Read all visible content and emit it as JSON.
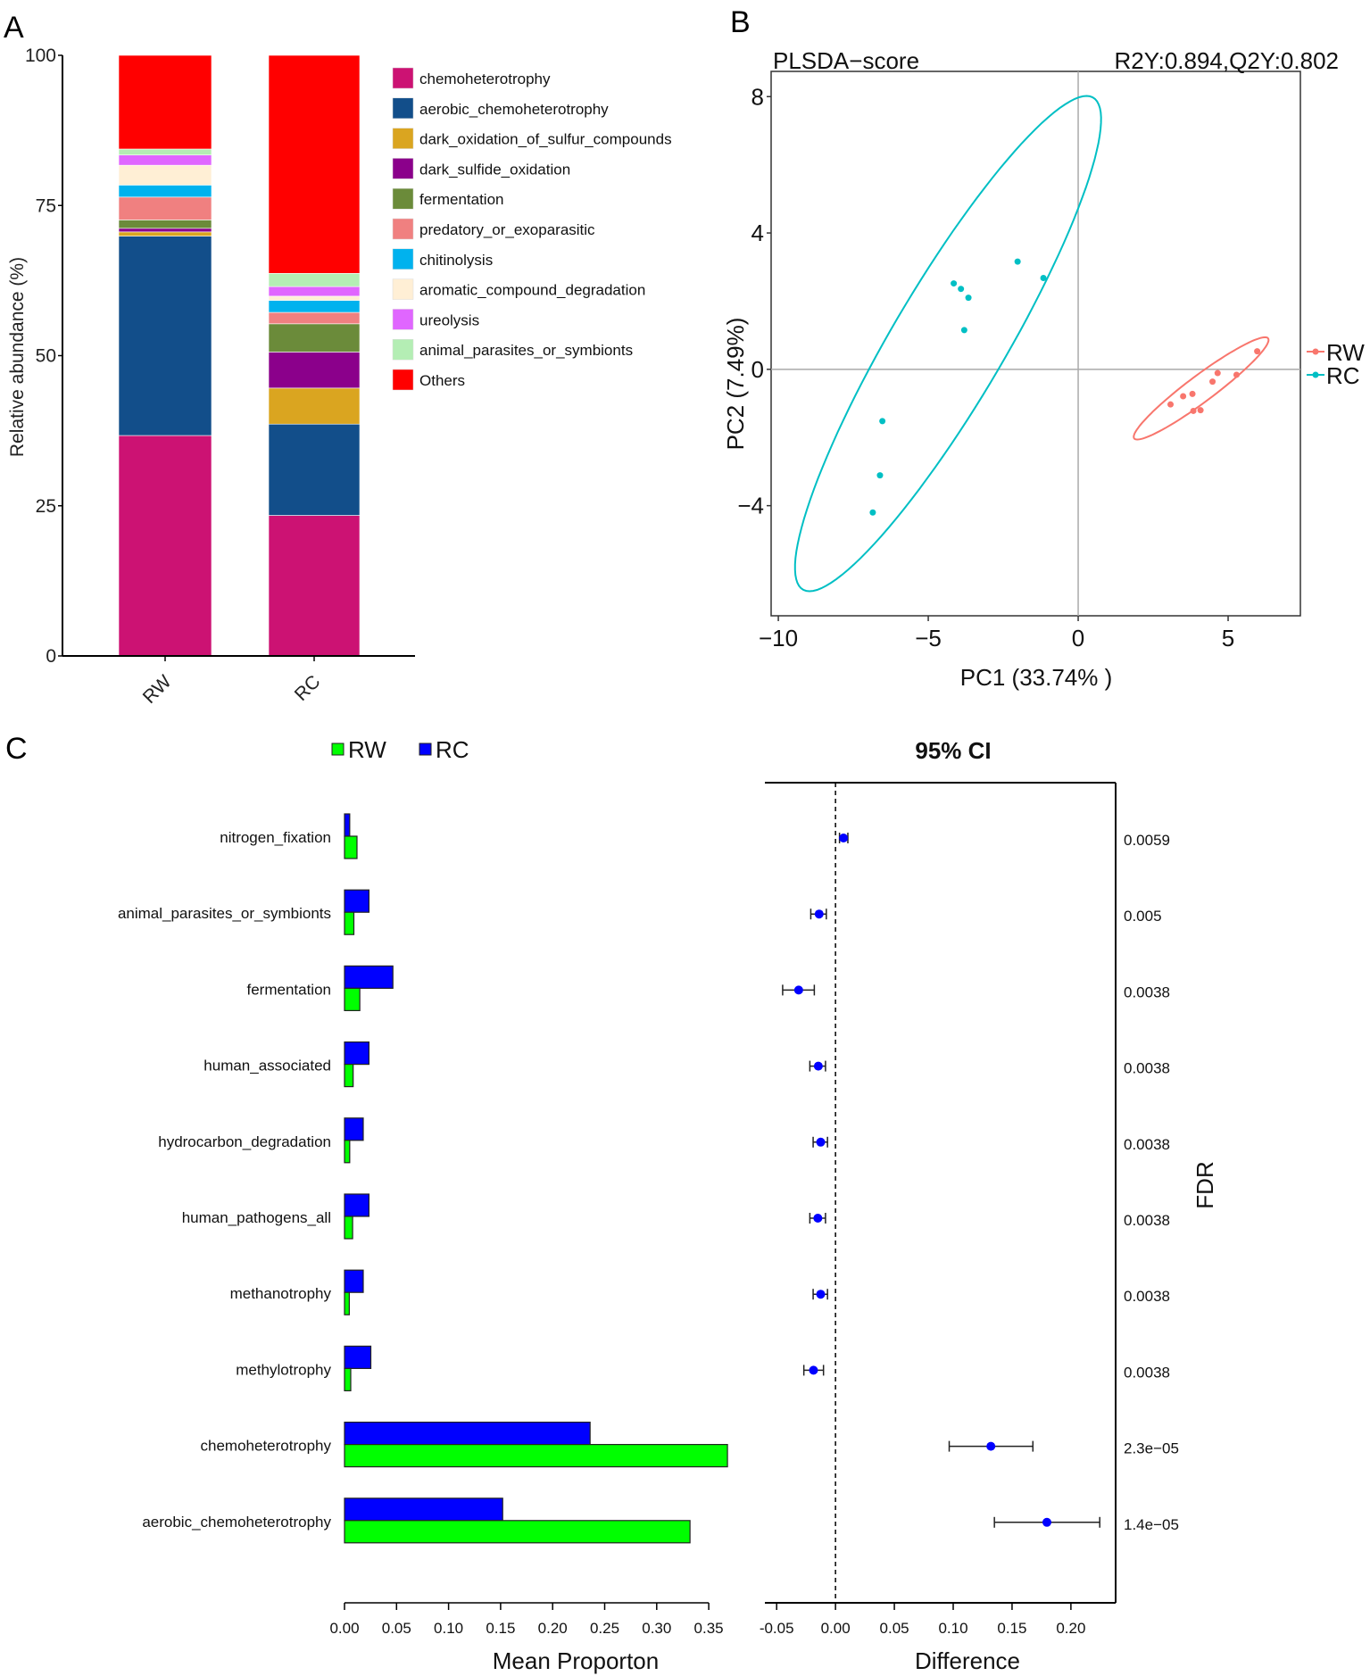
{
  "chart_data": [
    {
      "panel": "A",
      "type": "bar",
      "stacked": true,
      "ylabel": "Relative abundance (%)",
      "ylim": [
        0,
        100
      ],
      "yticks": [
        "0",
        "25",
        "50",
        "75",
        "100"
      ],
      "categories": [
        "RW",
        "RC"
      ],
      "series": [
        {
          "name": "chemoheterotrophy",
          "color": "#CC1273",
          "values": [
            36.7,
            23.4
          ]
        },
        {
          "name": "aerobic_chemoheterotrophy",
          "color": "#124E8A",
          "values": [
            33.2,
            15.2
          ]
        },
        {
          "name": "dark_oxidation_of_sulfur_compounds",
          "color": "#DAA520",
          "values": [
            0.7,
            6.0
          ]
        },
        {
          "name": "dark_sulfide_oxidation",
          "color": "#8B008B",
          "values": [
            0.6,
            6.0
          ]
        },
        {
          "name": "fermentation",
          "color": "#6B8B3A",
          "values": [
            1.4,
            4.7
          ]
        },
        {
          "name": "predatory_or_exoparasitic",
          "color": "#F08080",
          "values": [
            3.8,
            1.9
          ]
        },
        {
          "name": "chitinolysis",
          "color": "#00B2EE",
          "values": [
            2.0,
            2.0
          ]
        },
        {
          "name": "aromatic_compound_degradation",
          "color": "#FFEFD5",
          "values": [
            3.3,
            0.7
          ]
        },
        {
          "name": "ureolysis",
          "color": "#E066FF",
          "values": [
            1.7,
            1.6
          ]
        },
        {
          "name": "animal_parasites_or_symbionts",
          "color": "#B4EEB4",
          "values": [
            1.0,
            2.2
          ]
        },
        {
          "name": "Others",
          "color": "#FF0000",
          "values": [
            15.6,
            36.3
          ]
        }
      ],
      "legend": "right"
    },
    {
      "panel": "B",
      "type": "scatter",
      "title": "PLSDA−score",
      "subtitle": "R2Y:0.894,Q2Y:0.802",
      "xlabel": "PC1 (33.74% )",
      "ylabel": "PC2 (7.49%)",
      "xlim": [
        -10.24,
        7.41
      ],
      "ylim": [
        -7.23,
        8.74
      ],
      "xticks": [
        {
          "v": -10,
          "l": "−10"
        },
        {
          "v": -5,
          "l": "−5"
        },
        {
          "v": 0,
          "l": "0"
        },
        {
          "v": 5,
          "l": "5"
        }
      ],
      "yticks": [
        {
          "v": -4,
          "l": "−4"
        },
        {
          "v": 0,
          "l": "0"
        },
        {
          "v": 4,
          "l": "4"
        },
        {
          "v": 8,
          "l": "8"
        }
      ],
      "legend": "right",
      "series": [
        {
          "name": "RW",
          "color": "#F8766D",
          "points": [
            [
              5.97,
              0.53
            ],
            [
              4.65,
              -0.11
            ],
            [
              5.28,
              -0.16
            ],
            [
              4.48,
              -0.36
            ],
            [
              3.81,
              -0.72
            ],
            [
              3.5,
              -0.79
            ],
            [
              3.08,
              -1.03
            ],
            [
              3.84,
              -1.22
            ],
            [
              4.08,
              -1.2
            ]
          ],
          "ellipse": {
            "center": [
              4.1,
              -0.56
            ],
            "conj_a": [
              2.13,
              1.5
            ],
            "conj_b": [
              0.72,
              0
            ]
          }
        },
        {
          "name": "RC",
          "color": "#00BFC4",
          "points": [
            [
              -2.02,
              3.16
            ],
            [
              -1.16,
              2.68
            ],
            [
              -4.15,
              2.52
            ],
            [
              -3.91,
              2.36
            ],
            [
              -3.66,
              2.1
            ],
            [
              -3.8,
              1.15
            ],
            [
              -6.53,
              -1.52
            ],
            [
              -6.61,
              -3.11
            ],
            [
              -6.85,
              -4.2
            ]
          ],
          "ellipse": {
            "center": [
              -4.34,
              0.755
            ],
            "conj_a": [
              4.62,
              7.265
            ],
            "conj_b": [
              2.17,
              0
            ]
          }
        }
      ]
    },
    {
      "panel": "C",
      "type": "bar",
      "orientation": "horizontal",
      "xlabel": "Mean Proporton",
      "xlim": [
        0,
        0.37
      ],
      "xticks": [
        "0.00",
        "0.05",
        "0.10",
        "0.15",
        "0.20",
        "0.25",
        "0.30",
        "0.35"
      ],
      "categories": [
        "nitrogen_fixation",
        "animal_parasites_or_symbionts",
        "fermentation",
        "human_associated",
        "hydrocarbon_degradation",
        "human_pathogens_all",
        "methanotrophy",
        "methylotrophy",
        "chemoheterotrophy",
        "aerobic_chemoheterotrophy"
      ],
      "legend": "top",
      "series": [
        {
          "name": "RW",
          "color": "#00FF00",
          "values": [
            0.012,
            0.009,
            0.0147,
            0.0083,
            0.005,
            0.0078,
            0.0046,
            0.006,
            0.368,
            0.332
          ]
        },
        {
          "name": "RC",
          "color": "#0000FF",
          "values": [
            0.005,
            0.0235,
            0.0465,
            0.0235,
            0.018,
            0.0235,
            0.018,
            0.0253,
            0.236,
            0.152
          ]
        }
      ]
    },
    {
      "panel": "C-CI",
      "type": "scatter",
      "title": "95% CI",
      "xlabel": "Difference",
      "y2label": "FDR",
      "xlim": [
        -0.06,
        0.238
      ],
      "xticks": [
        "-0.05",
        "0.00",
        "0.05",
        "0.10",
        "0.15",
        "0.20"
      ],
      "difference": [
        0.0068,
        -0.0139,
        -0.0313,
        -0.0146,
        -0.0126,
        -0.015,
        -0.0126,
        -0.0187,
        0.132,
        0.1796
      ],
      "ci_low": [
        0.0034,
        -0.021,
        -0.0449,
        -0.0218,
        -0.019,
        -0.0218,
        -0.019,
        -0.0269,
        0.0966,
        0.135
      ],
      "ci_high": [
        0.0105,
        -0.0078,
        -0.018,
        -0.0085,
        -0.0068,
        -0.0085,
        -0.0068,
        -0.0102,
        0.1677,
        0.2245
      ],
      "fdr": [
        "0.0059",
        "0.005",
        "0.0038",
        "0.0038",
        "0.0038",
        "0.0038",
        "0.0038",
        "0.0038",
        "2.3e−05",
        "1.4e−05"
      ],
      "point_color": "#0000FF"
    }
  ],
  "panel_labels": [
    "A",
    "B",
    "C"
  ]
}
